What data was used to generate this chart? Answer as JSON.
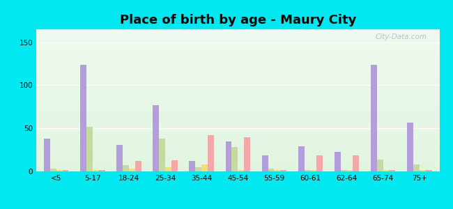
{
  "title": "Place of birth by age - Maury City",
  "categories": [
    "<5",
    "5-17",
    "18-24",
    "25-34",
    "35-44",
    "45-54",
    "55-59",
    "60-61",
    "62-64",
    "65-74",
    "75+"
  ],
  "series": {
    "Born in state of residence": [
      38,
      124,
      31,
      77,
      12,
      35,
      19,
      29,
      23,
      124,
      57
    ],
    "Born in other state": [
      3,
      52,
      7,
      38,
      5,
      28,
      3,
      2,
      2,
      14,
      8
    ],
    "Native, outside of US": [
      2,
      2,
      3,
      5,
      8,
      2,
      2,
      2,
      2,
      2,
      2
    ],
    "Foreign-born": [
      2,
      2,
      12,
      13,
      42,
      40,
      2,
      19,
      19,
      2,
      2
    ]
  },
  "colors": {
    "Born in state of residence": "#b39ddb",
    "Born in other state": "#c5d9a0",
    "Native, outside of US": "#f0e070",
    "Foreign-born": "#f4a9a8"
  },
  "ylim": [
    0,
    165
  ],
  "yticks": [
    0,
    50,
    100,
    150
  ],
  "outer_bg": "#00e8f0",
  "plot_bg_top": "#f0fbf0",
  "plot_bg_bottom": "#e8f5e0",
  "bar_width": 0.17,
  "title_fontsize": 13,
  "legend_fontsize": 8,
  "tick_fontsize": 7.5,
  "watermark": "City-Data.com"
}
